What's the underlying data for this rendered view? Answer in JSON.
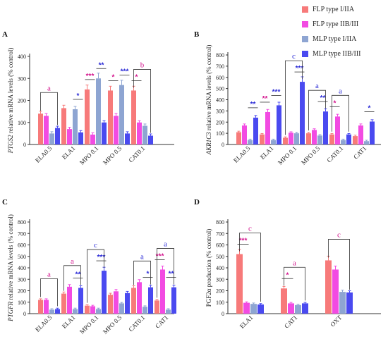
{
  "legend": [
    {
      "label": "FLP type I/IIA",
      "color": "#f77a7a"
    },
    {
      "label": "FLP type IIB/III",
      "color": "#f24be2"
    },
    {
      "label": "MLP type I/IIA",
      "color": "#8ea5d2"
    },
    {
      "label": "MLP type IIB/III",
      "color": "#4a4af0"
    }
  ],
  "colors": {
    "accent_a": "#d4158e",
    "accent_b": "#2a2ad6"
  },
  "chart_data": [
    {
      "panel": "A",
      "type": "bar",
      "ylabel_italic": "PTGS2",
      "ylabel": "relative mRNA levels (% control)",
      "ylim": [
        0,
        400
      ],
      "yticks": [
        0,
        100,
        200,
        300,
        400
      ],
      "categories": [
        "ELA0.5",
        "ELA1",
        "MPO 0.1",
        "MPO 0.5",
        "CAT0.1"
      ],
      "series": [
        {
          "name": "FLP type I/IIA",
          "values": [
            140,
            165,
            250,
            245,
            245
          ]
        },
        {
          "name": "FLP type IIB/III",
          "values": [
            130,
            70,
            45,
            130,
            100
          ]
        },
        {
          "name": "MLP type I/IIA",
          "values": [
            50,
            160,
            300,
            270,
            85
          ]
        },
        {
          "name": "MLP type IIB/III",
          "values": [
            75,
            55,
            100,
            50,
            40
          ]
        }
      ],
      "annotations": [
        {
          "text": "a",
          "kind": "bracket",
          "from": [
            0,
            0
          ],
          "to": [
            0,
            3
          ],
          "color": "#d4158e"
        },
        {
          "text": "*",
          "kind": "line",
          "from": [
            1,
            2
          ],
          "to": [
            1,
            3
          ],
          "color": "#2a2ad6"
        },
        {
          "text": "***",
          "kind": "line",
          "from": [
            2,
            0
          ],
          "to": [
            2,
            1
          ],
          "color": "#d4158e"
        },
        {
          "text": "**",
          "kind": "line",
          "from": [
            2,
            2
          ],
          "to": [
            2,
            3
          ],
          "color": "#2a2ad6"
        },
        {
          "text": "*",
          "kind": "line",
          "from": [
            3,
            0
          ],
          "to": [
            3,
            1
          ],
          "color": "#d4158e"
        },
        {
          "text": "***",
          "kind": "line",
          "from": [
            3,
            2
          ],
          "to": [
            3,
            3
          ],
          "color": "#2a2ad6"
        },
        {
          "text": "*",
          "kind": "line",
          "from": [
            4,
            0
          ],
          "to": [
            4,
            1
          ],
          "color": "#d4158e"
        },
        {
          "text": "b",
          "kind": "bracket",
          "from": [
            4,
            0
          ],
          "to": [
            4,
            3
          ],
          "color": "#d4158e"
        }
      ]
    },
    {
      "panel": "B",
      "type": "bar",
      "ylabel_italic": "AKR1C3",
      "ylabel": "relative mRNA levels (% control)",
      "ylim": [
        0,
        800
      ],
      "yticks": [
        0,
        100,
        200,
        300,
        400,
        500,
        600,
        700,
        800
      ],
      "categories": [
        "ELA0.5",
        "ELA1",
        "MPO 0.1",
        "MPO 0.5",
        "CAT0.1",
        "CAT1"
      ],
      "series": [
        {
          "name": "FLP type I/IIA",
          "values": [
            110,
            90,
            60,
            100,
            90,
            75
          ]
        },
        {
          "name": "FLP type IIB/III",
          "values": [
            170,
            290,
            105,
            130,
            250,
            170
          ]
        },
        {
          "name": "MLP type I/IIA",
          "values": [
            40,
            40,
            100,
            80,
            40,
            30
          ]
        },
        {
          "name": "MLP type IIB/III",
          "values": [
            240,
            350,
            560,
            295,
            90,
            205
          ]
        }
      ],
      "annotations": [
        {
          "text": "**",
          "kind": "line",
          "from": [
            0,
            2
          ],
          "to": [
            0,
            3
          ],
          "color": "#2a2ad6"
        },
        {
          "text": "**",
          "kind": "line",
          "from": [
            1,
            0
          ],
          "to": [
            1,
            1
          ],
          "color": "#d4158e"
        },
        {
          "text": "***",
          "kind": "line",
          "from": [
            1,
            2
          ],
          "to": [
            1,
            3
          ],
          "color": "#2a2ad6"
        },
        {
          "text": "***",
          "kind": "line",
          "from": [
            2,
            2
          ],
          "to": [
            2,
            3
          ],
          "color": "#2a2ad6"
        },
        {
          "text": "c",
          "kind": "bracket",
          "from": [
            2,
            0
          ],
          "to": [
            2,
            3
          ],
          "color": "#2a2ad6"
        },
        {
          "text": "**",
          "kind": "line",
          "from": [
            3,
            2
          ],
          "to": [
            3,
            3
          ],
          "color": "#2a2ad6"
        },
        {
          "text": "a",
          "kind": "bracket",
          "from": [
            3,
            0
          ],
          "to": [
            3,
            3
          ],
          "color": "#2a2ad6"
        },
        {
          "text": "*",
          "kind": "line",
          "from": [
            4,
            0
          ],
          "to": [
            4,
            1
          ],
          "color": "#d4158e"
        },
        {
          "text": "a",
          "kind": "bracket",
          "from": [
            4,
            0
          ],
          "to": [
            4,
            3
          ],
          "color": "#2a2ad6"
        },
        {
          "text": "*",
          "kind": "line",
          "from": [
            5,
            2
          ],
          "to": [
            5,
            3
          ],
          "color": "#2a2ad6"
        }
      ]
    },
    {
      "panel": "C",
      "type": "bar",
      "ylabel_italic": "PTGFR",
      "ylabel": "relative mRNA levels (% control)",
      "ylim": [
        0,
        800
      ],
      "yticks": [
        0,
        100,
        200,
        300,
        400,
        500,
        600,
        700,
        800
      ],
      "categories": [
        "ELA0.5",
        "ELA1",
        "MPO 0.1",
        "MPO 0.5",
        "CAT0.1",
        "CAT1"
      ],
      "series": [
        {
          "name": "FLP type I/IIA",
          "values": [
            120,
            175,
            70,
            165,
            225,
            115
          ]
        },
        {
          "name": "FLP type IIB/III",
          "values": [
            120,
            235,
            65,
            195,
            275,
            385
          ]
        },
        {
          "name": "MLP type I/IIA",
          "values": [
            35,
            40,
            40,
            90,
            60,
            35
          ]
        },
        {
          "name": "MLP type IIB/III",
          "values": [
            40,
            225,
            375,
            180,
            230,
            230
          ]
        }
      ],
      "annotations": [
        {
          "text": "a",
          "kind": "bracket",
          "from": [
            0,
            0
          ],
          "to": [
            0,
            3
          ],
          "color": "#d4158e"
        },
        {
          "text": "a",
          "kind": "bracket",
          "from": [
            1,
            0
          ],
          "to": [
            1,
            3
          ],
          "color": "#d4158e"
        },
        {
          "text": "**",
          "kind": "line",
          "from": [
            1,
            2
          ],
          "to": [
            1,
            3
          ],
          "color": "#2a2ad6"
        },
        {
          "text": "***",
          "kind": "line",
          "from": [
            2,
            2
          ],
          "to": [
            2,
            3
          ],
          "color": "#2a2ad6"
        },
        {
          "text": "c",
          "kind": "bracket",
          "from": [
            2,
            0
          ],
          "to": [
            2,
            3
          ],
          "color": "#2a2ad6"
        },
        {
          "text": "a",
          "kind": "bracket",
          "from": [
            4,
            0
          ],
          "to": [
            4,
            3
          ],
          "color": "#2a2ad6"
        },
        {
          "text": "*",
          "kind": "line",
          "from": [
            4,
            2
          ],
          "to": [
            4,
            3
          ],
          "color": "#2a2ad6"
        },
        {
          "text": "***",
          "kind": "line",
          "from": [
            5,
            0
          ],
          "to": [
            5,
            1
          ],
          "color": "#d4158e"
        },
        {
          "text": "a",
          "kind": "bracket",
          "from": [
            5,
            0
          ],
          "to": [
            5,
            3
          ],
          "color": "#2a2ad6"
        },
        {
          "text": "**",
          "kind": "line",
          "from": [
            5,
            2
          ],
          "to": [
            5,
            3
          ],
          "color": "#2a2ad6"
        }
      ]
    },
    {
      "panel": "D",
      "type": "bar",
      "ylabel_italic": "",
      "ylabel": "PGF2α production (% control)",
      "ylim": [
        0,
        800
      ],
      "yticks": [
        0,
        100,
        200,
        300,
        400,
        500,
        600,
        700,
        800
      ],
      "categories": [
        "ELA1",
        "CAT1",
        "OXT"
      ],
      "series": [
        {
          "name": "FLP type I/IIA",
          "values": [
            520,
            220,
            465
          ]
        },
        {
          "name": "FLP type IIB/III",
          "values": [
            95,
            90,
            385
          ]
        },
        {
          "name": "MLP type I/IIA",
          "values": [
            85,
            75,
            190
          ]
        },
        {
          "name": "MLP type IIB/III",
          "values": [
            80,
            90,
            185
          ]
        }
      ],
      "annotations": [
        {
          "text": "***",
          "kind": "line",
          "from": [
            0,
            0
          ],
          "to": [
            0,
            1
          ],
          "color": "#d4158e"
        },
        {
          "text": "c",
          "kind": "bracket",
          "from": [
            0,
            0
          ],
          "to": [
            0,
            3
          ],
          "color": "#d4158e"
        },
        {
          "text": "*",
          "kind": "line",
          "from": [
            1,
            0
          ],
          "to": [
            1,
            1
          ],
          "color": "#d4158e"
        },
        {
          "text": "a",
          "kind": "bracket",
          "from": [
            1,
            0
          ],
          "to": [
            1,
            3
          ],
          "color": "#d4158e"
        },
        {
          "text": "c",
          "kind": "bracket",
          "from": [
            2,
            0
          ],
          "to": [
            2,
            3
          ],
          "color": "#d4158e"
        }
      ]
    }
  ]
}
